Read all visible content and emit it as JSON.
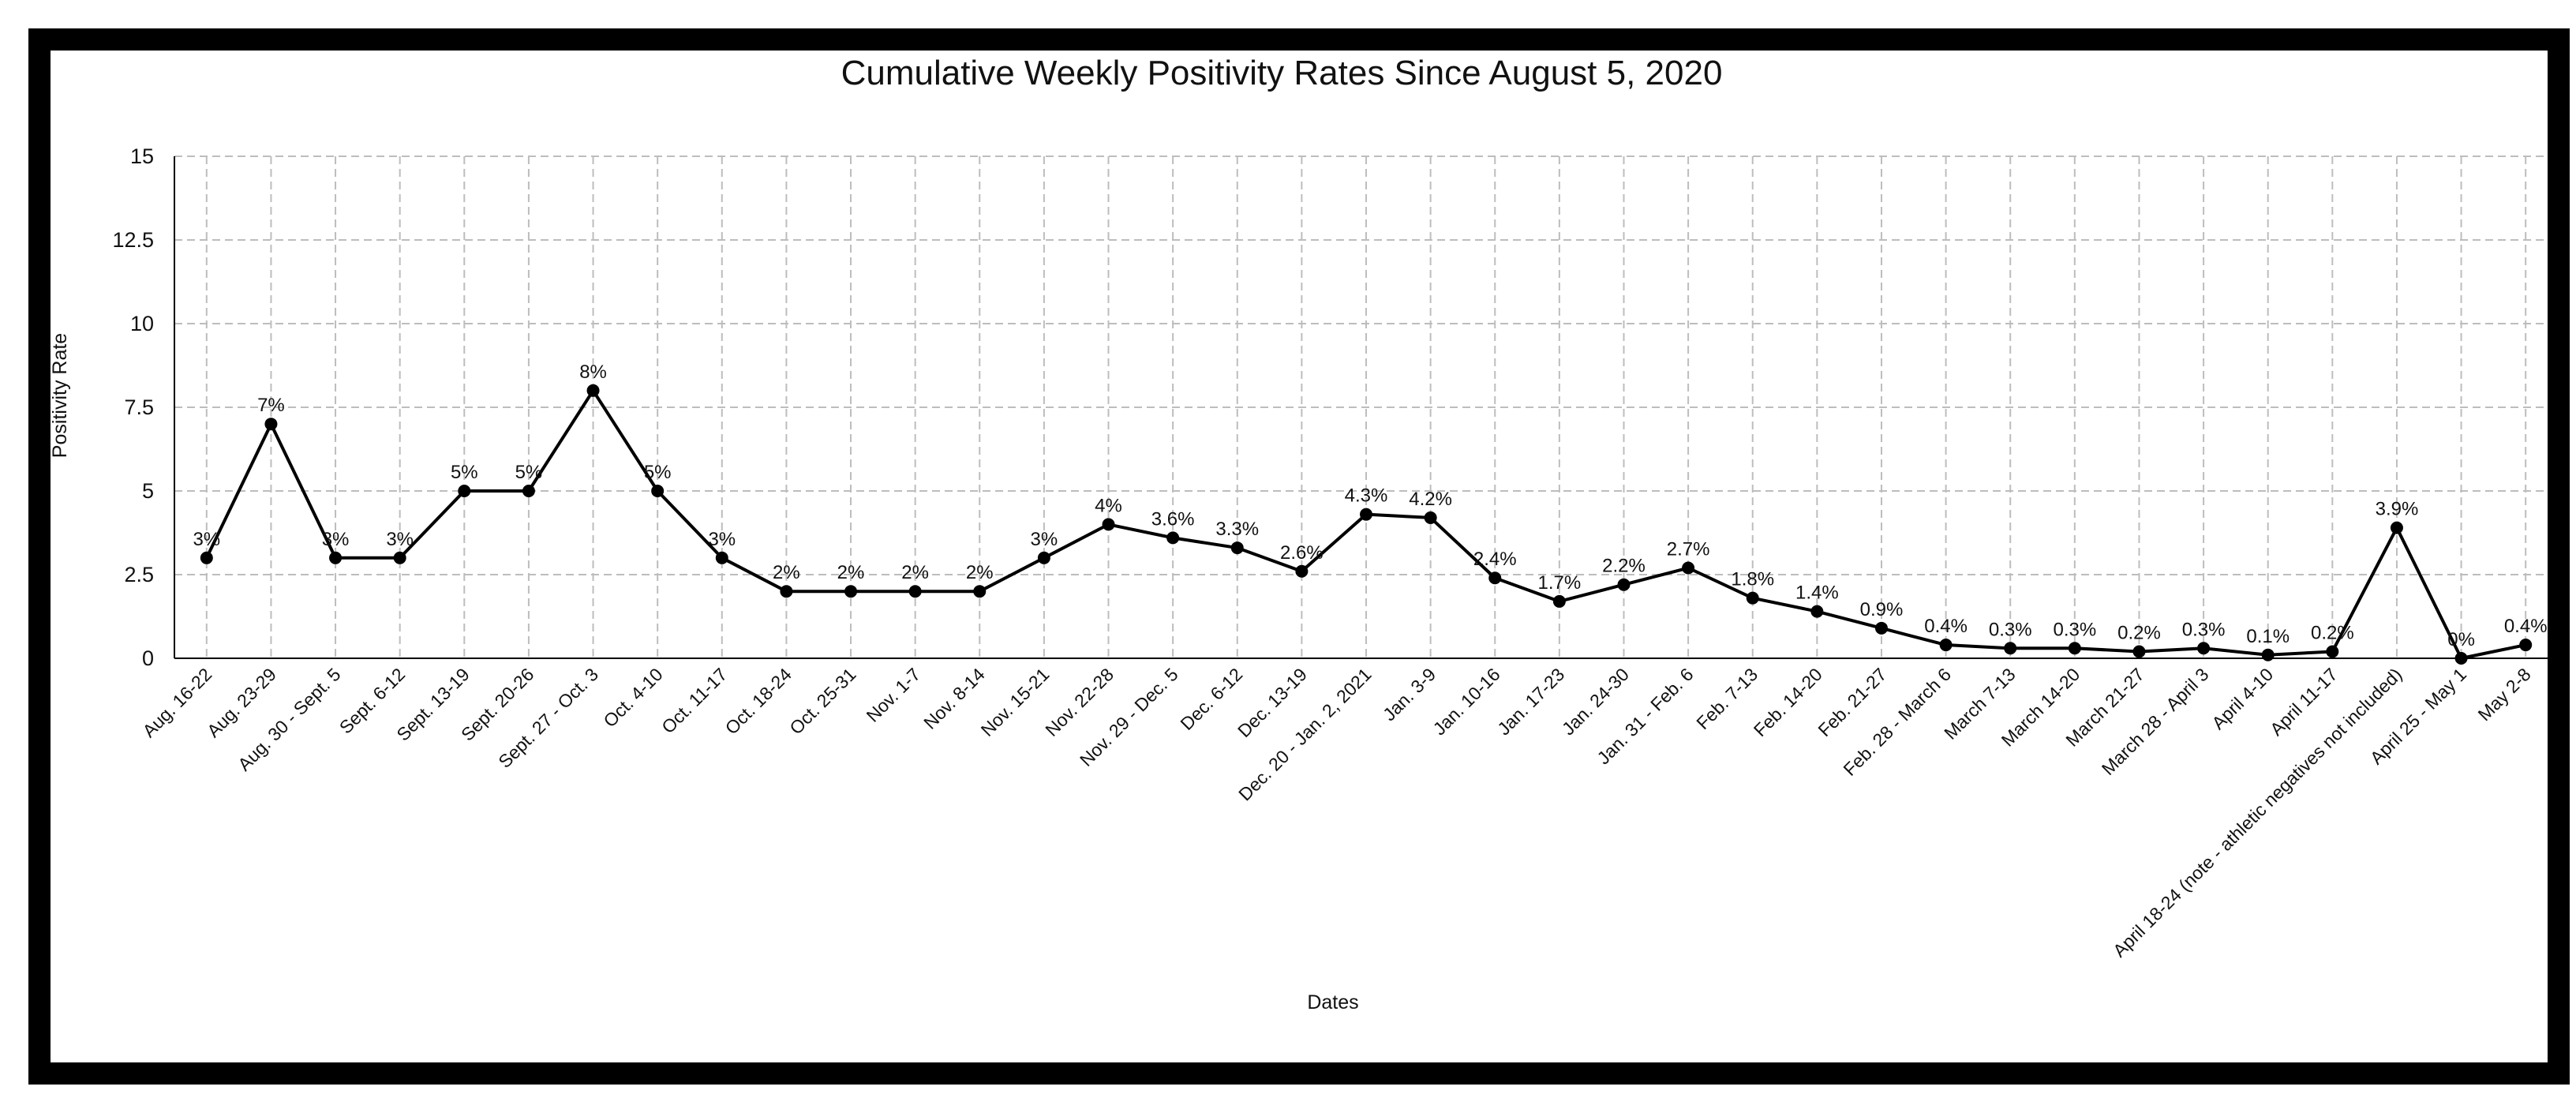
{
  "chart_data": {
    "type": "line",
    "title": "Cumulative Weekly Positivity Rates Since August 5, 2020",
    "xlabel": "Dates",
    "ylabel": "Positivity Rate",
    "ylim": [
      0,
      15
    ],
    "yticks": [
      "0",
      "2.5",
      "5",
      "7.5",
      "10",
      "12.5",
      "15"
    ],
    "grid": true,
    "legend": "none",
    "colors": {
      "line": "#000000",
      "grid": "#bdbdbd",
      "frame": "#000000"
    },
    "categories": [
      "Aug. 16-22",
      "Aug. 23-29",
      "Aug. 30 - Sept. 5",
      "Sept. 6-12",
      "Sept. 13-19",
      "Sept. 20-26",
      "Sept. 27 - Oct. 3",
      "Oct. 4-10",
      "Oct. 11-17",
      "Oct. 18-24",
      "Oct. 25-31",
      "Nov. 1-7",
      "Nov. 8-14",
      "Nov. 15-21",
      "Nov. 22-28",
      "Nov. 29 - Dec. 5",
      "Dec. 6-12",
      "Dec. 13-19",
      "Dec. 20 - Jan. 2, 2021",
      "Jan. 3-9",
      "Jan. 10-16",
      "Jan. 17-23",
      "Jan. 24-30",
      "Jan. 31 - Feb. 6",
      "Feb. 7-13",
      "Feb. 14-20",
      "Feb. 21-27",
      "Feb. 28 - March 6",
      "March 7-13",
      "March 14-20",
      "March 21-27",
      "March 28 - April 3",
      "April 4-10",
      "April 11-17",
      "April 18-24 (note - athletic negatives not included)",
      "April 25 - May 1",
      "May 2-8"
    ],
    "values": [
      3,
      7,
      3,
      3,
      5,
      5,
      8,
      5,
      3,
      2,
      2,
      2,
      2,
      3,
      4,
      3.6,
      3.3,
      2.6,
      4.3,
      4.2,
      2.4,
      1.7,
      2.2,
      2.7,
      1.8,
      1.4,
      0.9,
      0.4,
      0.3,
      0.3,
      0.2,
      0.3,
      0.1,
      0.2,
      3.9,
      0,
      0.4
    ],
    "data_labels": [
      "3%",
      "7%",
      "3%",
      "3%",
      "5%",
      "5%",
      "8%",
      "5%",
      "3%",
      "2%",
      "2%",
      "2%",
      "2%",
      "3%",
      "4%",
      "3.6%",
      "3.3%",
      "2.6%",
      "4.3%",
      "4.2%",
      "2.4%",
      "1.7%",
      "2.2%",
      "2.7%",
      "1.8%",
      "1.4%",
      "0.9%",
      "0.4%",
      "0.3%",
      "0.3%",
      "0.2%",
      "0.3%",
      "0.1%",
      "0.2%",
      "3.9%",
      "0%",
      "0.4%"
    ]
  }
}
